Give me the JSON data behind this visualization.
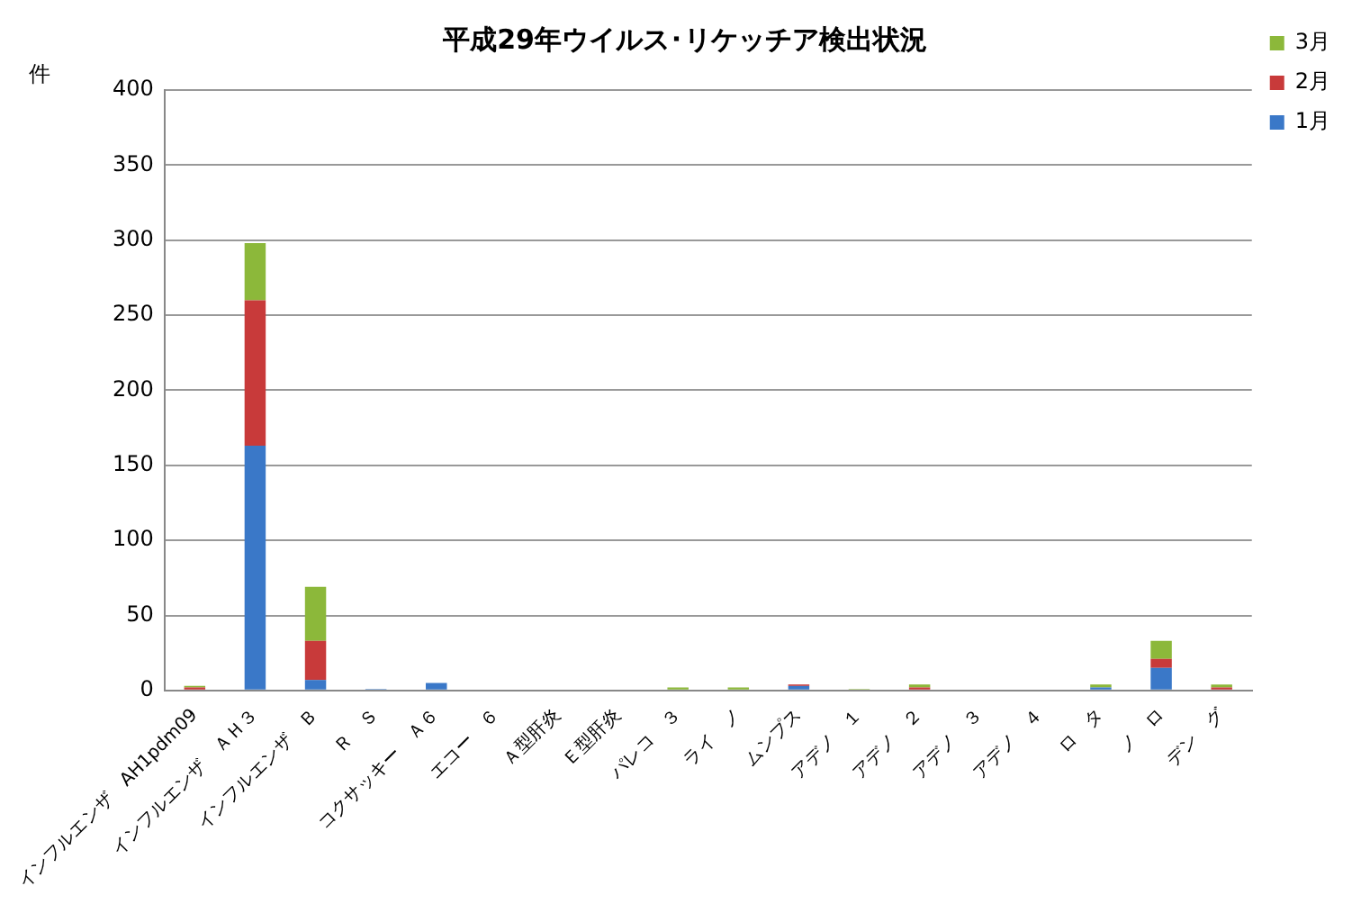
{
  "chart_data": {
    "type": "bar",
    "title": "平成29年ウイルス･リケッチア検出状況",
    "ylabel": "件",
    "categories": [
      "インフルエンザ　AH1pdm09",
      "インフルエンザ　ＡＨ３",
      "インフルエンザ　Ｂ",
      "Ｒ　Ｓ",
      "コクサッキー　Ａ６",
      "エコー　６",
      "Ａ型肝炎",
      "Ｅ型肝炎",
      "パレコ　３",
      "ライ　ノ",
      "ムンプス",
      "アデノ　１",
      "アデノ　２",
      "アデノ　３",
      "アデノ　４",
      "ロ　タ",
      "ノ　ロ",
      "デン　グ"
    ],
    "series": [
      {
        "name": "1月",
        "color": "#3a78c8",
        "values": [
          0,
          163,
          7,
          1,
          5,
          0,
          0,
          0,
          0,
          0,
          3,
          0,
          0,
          0,
          0,
          2,
          15,
          0
        ]
      },
      {
        "name": "2月",
        "color": "#c83a3a",
        "values": [
          2,
          97,
          26,
          0,
          0,
          0,
          0,
          0,
          0,
          0,
          1,
          0,
          2,
          0,
          0,
          0,
          6,
          2
        ]
      },
      {
        "name": "3月",
        "color": "#8cb83a",
        "values": [
          1,
          38,
          36,
          0,
          0,
          0,
          0,
          0,
          2,
          2,
          0,
          1,
          2,
          0,
          0,
          2,
          12,
          2
        ]
      }
    ],
    "stacked": true,
    "ylim": [
      0,
      400
    ],
    "yticks": [
      0,
      50,
      100,
      150,
      200,
      250,
      300,
      350,
      400
    ],
    "grid": "y",
    "legend": "top right"
  }
}
